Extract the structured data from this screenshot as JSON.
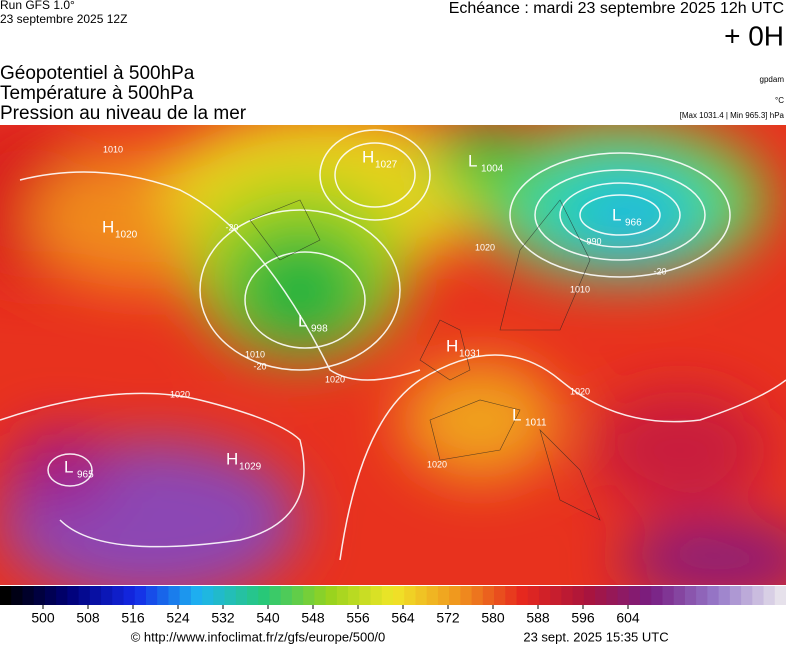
{
  "header": {
    "run": "Run GFS 1.0°",
    "run_date": "23 septembre 2025 12Z",
    "echeance": "Echéance : mardi 23 septembre 2025 12h UTC",
    "offset": "+ 0H"
  },
  "titles": [
    "Géopotentiel à 500hPa",
    "Température à 500hPa",
    "Pression au niveau de la mer"
  ],
  "units": {
    "geopotential": "gpdam",
    "temperature": "°C",
    "pressure_range": "[Max 1031.4 | Min 965.3] hPa"
  },
  "pressure_centers": [
    {
      "type": "H",
      "value": 1027
    },
    {
      "type": "L",
      "value": 1004
    },
    {
      "type": "L",
      "value": 966
    },
    {
      "type": "H",
      "value": 1020
    },
    {
      "type": "L",
      "value": 998
    },
    {
      "type": "H",
      "value": 1031
    },
    {
      "type": "L",
      "value": 1011
    },
    {
      "type": "H",
      "value": 1029
    },
    {
      "type": "L",
      "value": 965
    }
  ],
  "contour_labels": [
    1010,
    1020,
    1020,
    1020,
    1010,
    -20,
    -20,
    990,
    1010,
    1020,
    1020,
    -20
  ],
  "colorbar": {
    "ticks": [
      500,
      508,
      516,
      524,
      532,
      540,
      548,
      556,
      564,
      572,
      580,
      588,
      596,
      604
    ]
  },
  "footer": {
    "url": "© http://www.infoclimat.fr/z/gfs/europe/500/0",
    "timestamp": "23 sept. 2025 15:35 UTC"
  }
}
